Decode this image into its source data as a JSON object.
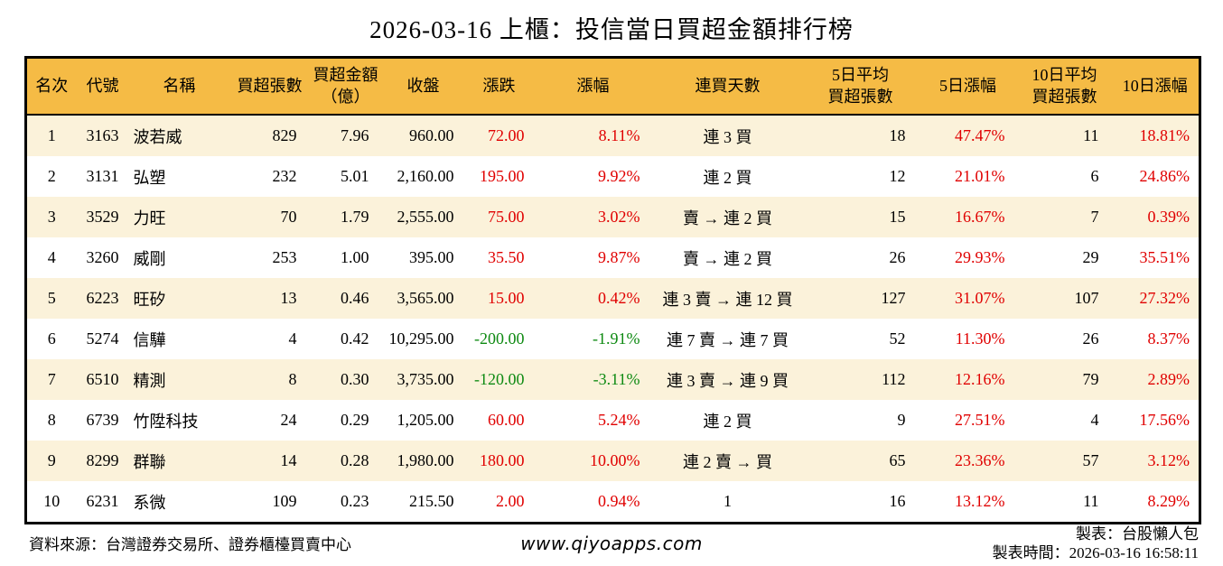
{
  "title": "2026-03-16 上櫃：投信當日買超金額排行榜",
  "chart_data": {
    "type": "table",
    "columns": [
      "名次",
      "代號",
      "名稱",
      "買超張數",
      "買超金額\n（億）",
      "收盤",
      "漲跌",
      "漲幅",
      "連買天數",
      "5日平均\n買超張數",
      "5日漲幅",
      "10日平均\n買超張數",
      "10日漲幅"
    ],
    "rows": [
      [
        "1",
        "3163",
        "波若威",
        "829",
        "7.96",
        "960.00",
        "72.00",
        "8.11%",
        "連 3 買",
        "18",
        "47.47%",
        "11",
        "18.81%"
      ],
      [
        "2",
        "3131",
        "弘塑",
        "232",
        "5.01",
        "2,160.00",
        "195.00",
        "9.92%",
        "連 2 買",
        "12",
        "21.01%",
        "6",
        "24.86%"
      ],
      [
        "3",
        "3529",
        "力旺",
        "70",
        "1.79",
        "2,555.00",
        "75.00",
        "3.02%",
        "賣 → 連 2 買",
        "15",
        "16.67%",
        "7",
        "0.39%"
      ],
      [
        "4",
        "3260",
        "威剛",
        "253",
        "1.00",
        "395.00",
        "35.50",
        "9.87%",
        "賣 → 連 2 買",
        "26",
        "29.93%",
        "29",
        "35.51%"
      ],
      [
        "5",
        "6223",
        "旺矽",
        "13",
        "0.46",
        "3,565.00",
        "15.00",
        "0.42%",
        "連 3 賣 → 連 12 買",
        "127",
        "31.07%",
        "107",
        "27.32%"
      ],
      [
        "6",
        "5274",
        "信驊",
        "4",
        "0.42",
        "10,295.00",
        "-200.00",
        "-1.91%",
        "連 7 賣 → 連 7 買",
        "52",
        "11.30%",
        "26",
        "8.37%"
      ],
      [
        "7",
        "6510",
        "精測",
        "8",
        "0.30",
        "3,735.00",
        "-120.00",
        "-3.11%",
        "連 3 賣 → 連 9 買",
        "112",
        "12.16%",
        "79",
        "2.89%"
      ],
      [
        "8",
        "6739",
        "竹陞科技",
        "24",
        "0.29",
        "1,205.00",
        "60.00",
        "5.24%",
        "連 2 買",
        "9",
        "27.51%",
        "4",
        "17.56%"
      ],
      [
        "9",
        "8299",
        "群聯",
        "14",
        "0.28",
        "1,980.00",
        "180.00",
        "10.00%",
        "連 2 賣 → 買",
        "65",
        "23.36%",
        "57",
        "3.12%"
      ],
      [
        "10",
        "6231",
        "系微",
        "109",
        "0.23",
        "215.50",
        "2.00",
        "0.94%",
        "1",
        "16",
        "13.12%",
        "11",
        "8.29%"
      ]
    ],
    "signed_color_columns": [
      6,
      7,
      10,
      12
    ],
    "legend_position": "none",
    "grid": false
  },
  "footer": {
    "source": "資料來源：台灣證券交易所、證券櫃檯買賣中心",
    "website": "www.qiyoapps.com",
    "author": "製表：台股懶人包",
    "timestamp": "製表時間：2026-03-16 16:58:11"
  },
  "colors": {
    "header_bg": "#F5BB45",
    "row_alt_bg": "#FBF2DA",
    "up": "#E00000",
    "down": "#0E8A12"
  }
}
